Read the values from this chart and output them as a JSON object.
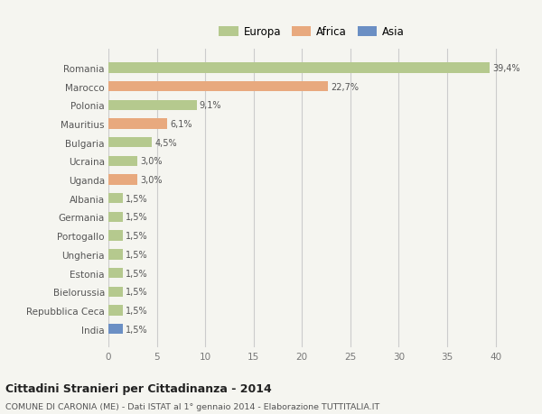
{
  "countries": [
    "Romania",
    "Marocco",
    "Polonia",
    "Mauritius",
    "Bulgaria",
    "Ucraina",
    "Uganda",
    "Albania",
    "Germania",
    "Portogallo",
    "Ungheria",
    "Estonia",
    "Bielorussia",
    "Repubblica Ceca",
    "India"
  ],
  "values": [
    39.4,
    22.7,
    9.1,
    6.1,
    4.5,
    3.0,
    3.0,
    1.5,
    1.5,
    1.5,
    1.5,
    1.5,
    1.5,
    1.5,
    1.5
  ],
  "labels": [
    "39,4%",
    "22,7%",
    "9,1%",
    "6,1%",
    "4,5%",
    "3,0%",
    "3,0%",
    "1,5%",
    "1,5%",
    "1,5%",
    "1,5%",
    "1,5%",
    "1,5%",
    "1,5%",
    "1,5%"
  ],
  "continents": [
    "Europa",
    "Africa",
    "Europa",
    "Africa",
    "Europa",
    "Europa",
    "Africa",
    "Europa",
    "Europa",
    "Europa",
    "Europa",
    "Europa",
    "Europa",
    "Europa",
    "Asia"
  ],
  "colors": {
    "Europa": "#b5c98e",
    "Africa": "#e8a97e",
    "Asia": "#6b8fc4"
  },
  "background_color": "#f5f5f0",
  "title": "Cittadini Stranieri per Cittadinanza - 2014",
  "subtitle": "COMUNE DI CARONIA (ME) - Dati ISTAT al 1° gennaio 2014 - Elaborazione TUTTITALIA.IT",
  "xlim": [
    0,
    42
  ],
  "xticks": [
    0,
    5,
    10,
    15,
    20,
    25,
    30,
    35,
    40
  ],
  "grid_color": "#cccccc",
  "bar_height": 0.55
}
